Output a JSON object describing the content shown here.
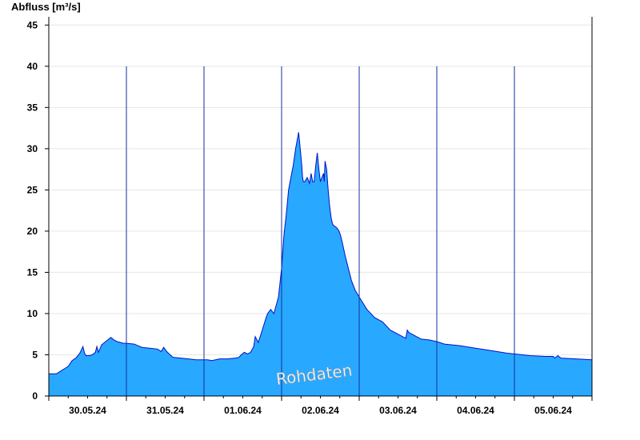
{
  "chart_data": {
    "type": "area",
    "ylabel": "Abfluss [m³/s]",
    "watermark": "Rohdaten",
    "ylim": [
      0,
      46
    ],
    "yticks": [
      0,
      5,
      10,
      15,
      20,
      25,
      30,
      35,
      40,
      45
    ],
    "xlim_days": [
      0,
      7
    ],
    "xticks": [
      {
        "label": "30.05.24",
        "day": 0.5
      },
      {
        "label": "31.05.24",
        "day": 1.5
      },
      {
        "label": "01.06.24",
        "day": 2.5
      },
      {
        "label": "02.06.24",
        "day": 3.5
      },
      {
        "label": "03.06.24",
        "day": 4.5
      },
      {
        "label": "04.06.24",
        "day": 5.5
      },
      {
        "label": "05.06.24",
        "day": 6.5
      }
    ],
    "day_separators": [
      1,
      2,
      3,
      4,
      5,
      6
    ],
    "grid": true,
    "colors": {
      "fill": "#29a8ff",
      "line": "#0010c8",
      "grid": "#e6e6e6",
      "separator": "#1030a0"
    },
    "series": [
      {
        "x": [
          0.0,
          0.1,
          0.15,
          0.2,
          0.25,
          0.3,
          0.35,
          0.4,
          0.44,
          0.46,
          0.48,
          0.52,
          0.56,
          0.6,
          0.62,
          0.64,
          0.68,
          0.72,
          0.76,
          0.8,
          0.84,
          0.88,
          0.92,
          0.96,
          1.0,
          1.1,
          1.2,
          1.3,
          1.4,
          1.45,
          1.48,
          1.52,
          1.55,
          1.6,
          1.7,
          1.8,
          1.9,
          2.0,
          2.05,
          2.1,
          2.15,
          2.2,
          2.3,
          2.4,
          2.45,
          2.48,
          2.52,
          2.56,
          2.6,
          2.64,
          2.66,
          2.7,
          2.75,
          2.8,
          2.82,
          2.86,
          2.9,
          2.93,
          2.96,
          3.0,
          3.03,
          3.06,
          3.09,
          3.12,
          3.15,
          3.18,
          3.22,
          3.24,
          3.26,
          3.27,
          3.28,
          3.3,
          3.33,
          3.36,
          3.38,
          3.4,
          3.42,
          3.44,
          3.46,
          3.48,
          3.5,
          3.52,
          3.54,
          3.55,
          3.56,
          3.58,
          3.6,
          3.62,
          3.64,
          3.66,
          3.68,
          3.7,
          3.72,
          3.74,
          3.76,
          3.78,
          3.82,
          3.86,
          3.9,
          3.95,
          4.0,
          4.1,
          4.2,
          4.3,
          4.4,
          4.5,
          4.6,
          4.62,
          4.64,
          4.68,
          4.72,
          4.76,
          4.8,
          4.9,
          5.0,
          5.1,
          5.3,
          5.5,
          5.7,
          5.9,
          6.0,
          6.2,
          6.4,
          6.5,
          6.52,
          6.56,
          6.6,
          6.8,
          7.0
        ],
        "y": [
          2.7,
          2.7,
          3.0,
          3.3,
          3.6,
          4.3,
          4.6,
          5.2,
          6.0,
          5.2,
          4.9,
          4.9,
          5.0,
          5.3,
          6.0,
          5.3,
          6.2,
          6.5,
          6.8,
          7.1,
          6.8,
          6.6,
          6.5,
          6.4,
          6.4,
          6.3,
          5.9,
          5.8,
          5.7,
          5.4,
          5.9,
          5.4,
          5.1,
          4.7,
          4.6,
          4.5,
          4.4,
          4.4,
          4.4,
          4.3,
          4.4,
          4.5,
          4.5,
          4.6,
          4.7,
          5.0,
          5.3,
          5.1,
          5.3,
          6.0,
          7.2,
          6.5,
          8.0,
          9.5,
          10.0,
          10.5,
          10.0,
          11.0,
          12.0,
          15.5,
          19.5,
          22.0,
          25.0,
          26.5,
          28.0,
          30.0,
          32.0,
          30.0,
          28.0,
          26.5,
          26.0,
          26.0,
          26.5,
          25.8,
          27.0,
          26.0,
          26.0,
          28.0,
          29.5,
          27.5,
          26.0,
          26.5,
          27.0,
          26.0,
          28.5,
          27.5,
          25.0,
          23.0,
          21.5,
          20.8,
          20.6,
          20.5,
          20.3,
          20.0,
          19.5,
          18.7,
          17.0,
          15.5,
          14.0,
          12.8,
          12.0,
          10.5,
          9.5,
          9.0,
          8.0,
          7.5,
          7.0,
          8.0,
          7.7,
          7.5,
          7.3,
          7.1,
          6.9,
          6.8,
          6.6,
          6.3,
          6.1,
          5.8,
          5.5,
          5.2,
          5.1,
          4.9,
          4.8,
          4.8,
          4.6,
          4.9,
          4.6,
          4.5,
          4.4
        ]
      }
    ]
  }
}
